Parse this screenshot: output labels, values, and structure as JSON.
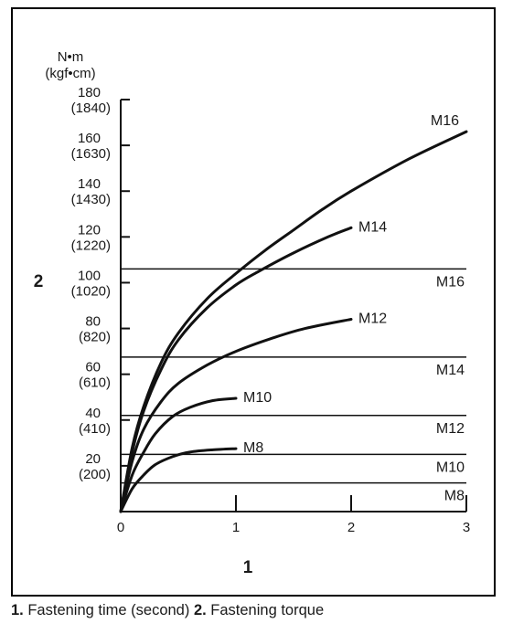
{
  "chart_data": {
    "type": "line",
    "x_unit_marker": "1",
    "y_unit_marker": "2",
    "y_unit_top": "N•m",
    "y_unit_bottom": "(kgf•cm)",
    "xlim": [
      0,
      3
    ],
    "ylim": [
      0,
      180
    ],
    "x_ticks": [
      {
        "value": 0,
        "label": "0"
      },
      {
        "value": 1,
        "label": "1"
      },
      {
        "value": 2,
        "label": "2"
      },
      {
        "value": 3,
        "label": "3"
      }
    ],
    "y_ticks": [
      {
        "value": 20,
        "label": "20",
        "sub": "(200)"
      },
      {
        "value": 40,
        "label": "40",
        "sub": "(410)"
      },
      {
        "value": 60,
        "label": "60",
        "sub": "(610)"
      },
      {
        "value": 80,
        "label": "80",
        "sub": "(820)"
      },
      {
        "value": 100,
        "label": "100",
        "sub": "(1020)"
      },
      {
        "value": 120,
        "label": "120",
        "sub": "(1220)"
      },
      {
        "value": 140,
        "label": "140",
        "sub": "(1430)"
      },
      {
        "value": 160,
        "label": "160",
        "sub": "(1630)"
      },
      {
        "value": 180,
        "label": "180",
        "sub": "(1840)"
      }
    ],
    "series": [
      {
        "name": "M8",
        "x": [
          0,
          0.1,
          0.2,
          0.3,
          0.45,
          0.6,
          0.8,
          1.0
        ],
        "y": [
          0,
          10,
          16,
          20.5,
          24,
          26,
          27,
          27.5
        ]
      },
      {
        "name": "M10",
        "x": [
          0,
          0.1,
          0.2,
          0.3,
          0.45,
          0.6,
          0.8,
          1.0
        ],
        "y": [
          0,
          16,
          26,
          34,
          41.5,
          45.5,
          48.5,
          49.5
        ]
      },
      {
        "name": "M12",
        "x": [
          0,
          0.1,
          0.2,
          0.35,
          0.5,
          0.75,
          1.0,
          1.3,
          1.6,
          2.0
        ],
        "y": [
          0,
          22,
          36,
          48,
          56,
          64,
          70,
          75.5,
          80,
          84
        ]
      },
      {
        "name": "M14",
        "x": [
          0,
          0.1,
          0.2,
          0.35,
          0.5,
          0.75,
          1.0,
          1.2,
          1.5,
          1.8,
          2.0
        ],
        "y": [
          0,
          26,
          44,
          62,
          75,
          89,
          99,
          105,
          113,
          120,
          124
        ]
      },
      {
        "name": "M16",
        "x": [
          0,
          0.1,
          0.2,
          0.35,
          0.5,
          0.75,
          1.0,
          1.25,
          1.5,
          1.75,
          2.0,
          2.5,
          3.0
        ],
        "y": [
          0,
          28,
          46,
          65,
          78,
          93,
          104,
          114,
          123,
          132,
          140,
          154,
          166
        ]
      }
    ],
    "reference_lines": [
      {
        "name": "M8",
        "y": 12.5
      },
      {
        "name": "M10",
        "y": 25
      },
      {
        "name": "M12",
        "y": 42
      },
      {
        "name": "M14",
        "y": 67.5
      },
      {
        "name": "M16",
        "y": 106
      }
    ],
    "grid": false,
    "legend": "none"
  },
  "caption": {
    "n1": "1.",
    "t1": " Fastening time (second) ",
    "n2": "2.",
    "t2": " Fastening torque"
  }
}
